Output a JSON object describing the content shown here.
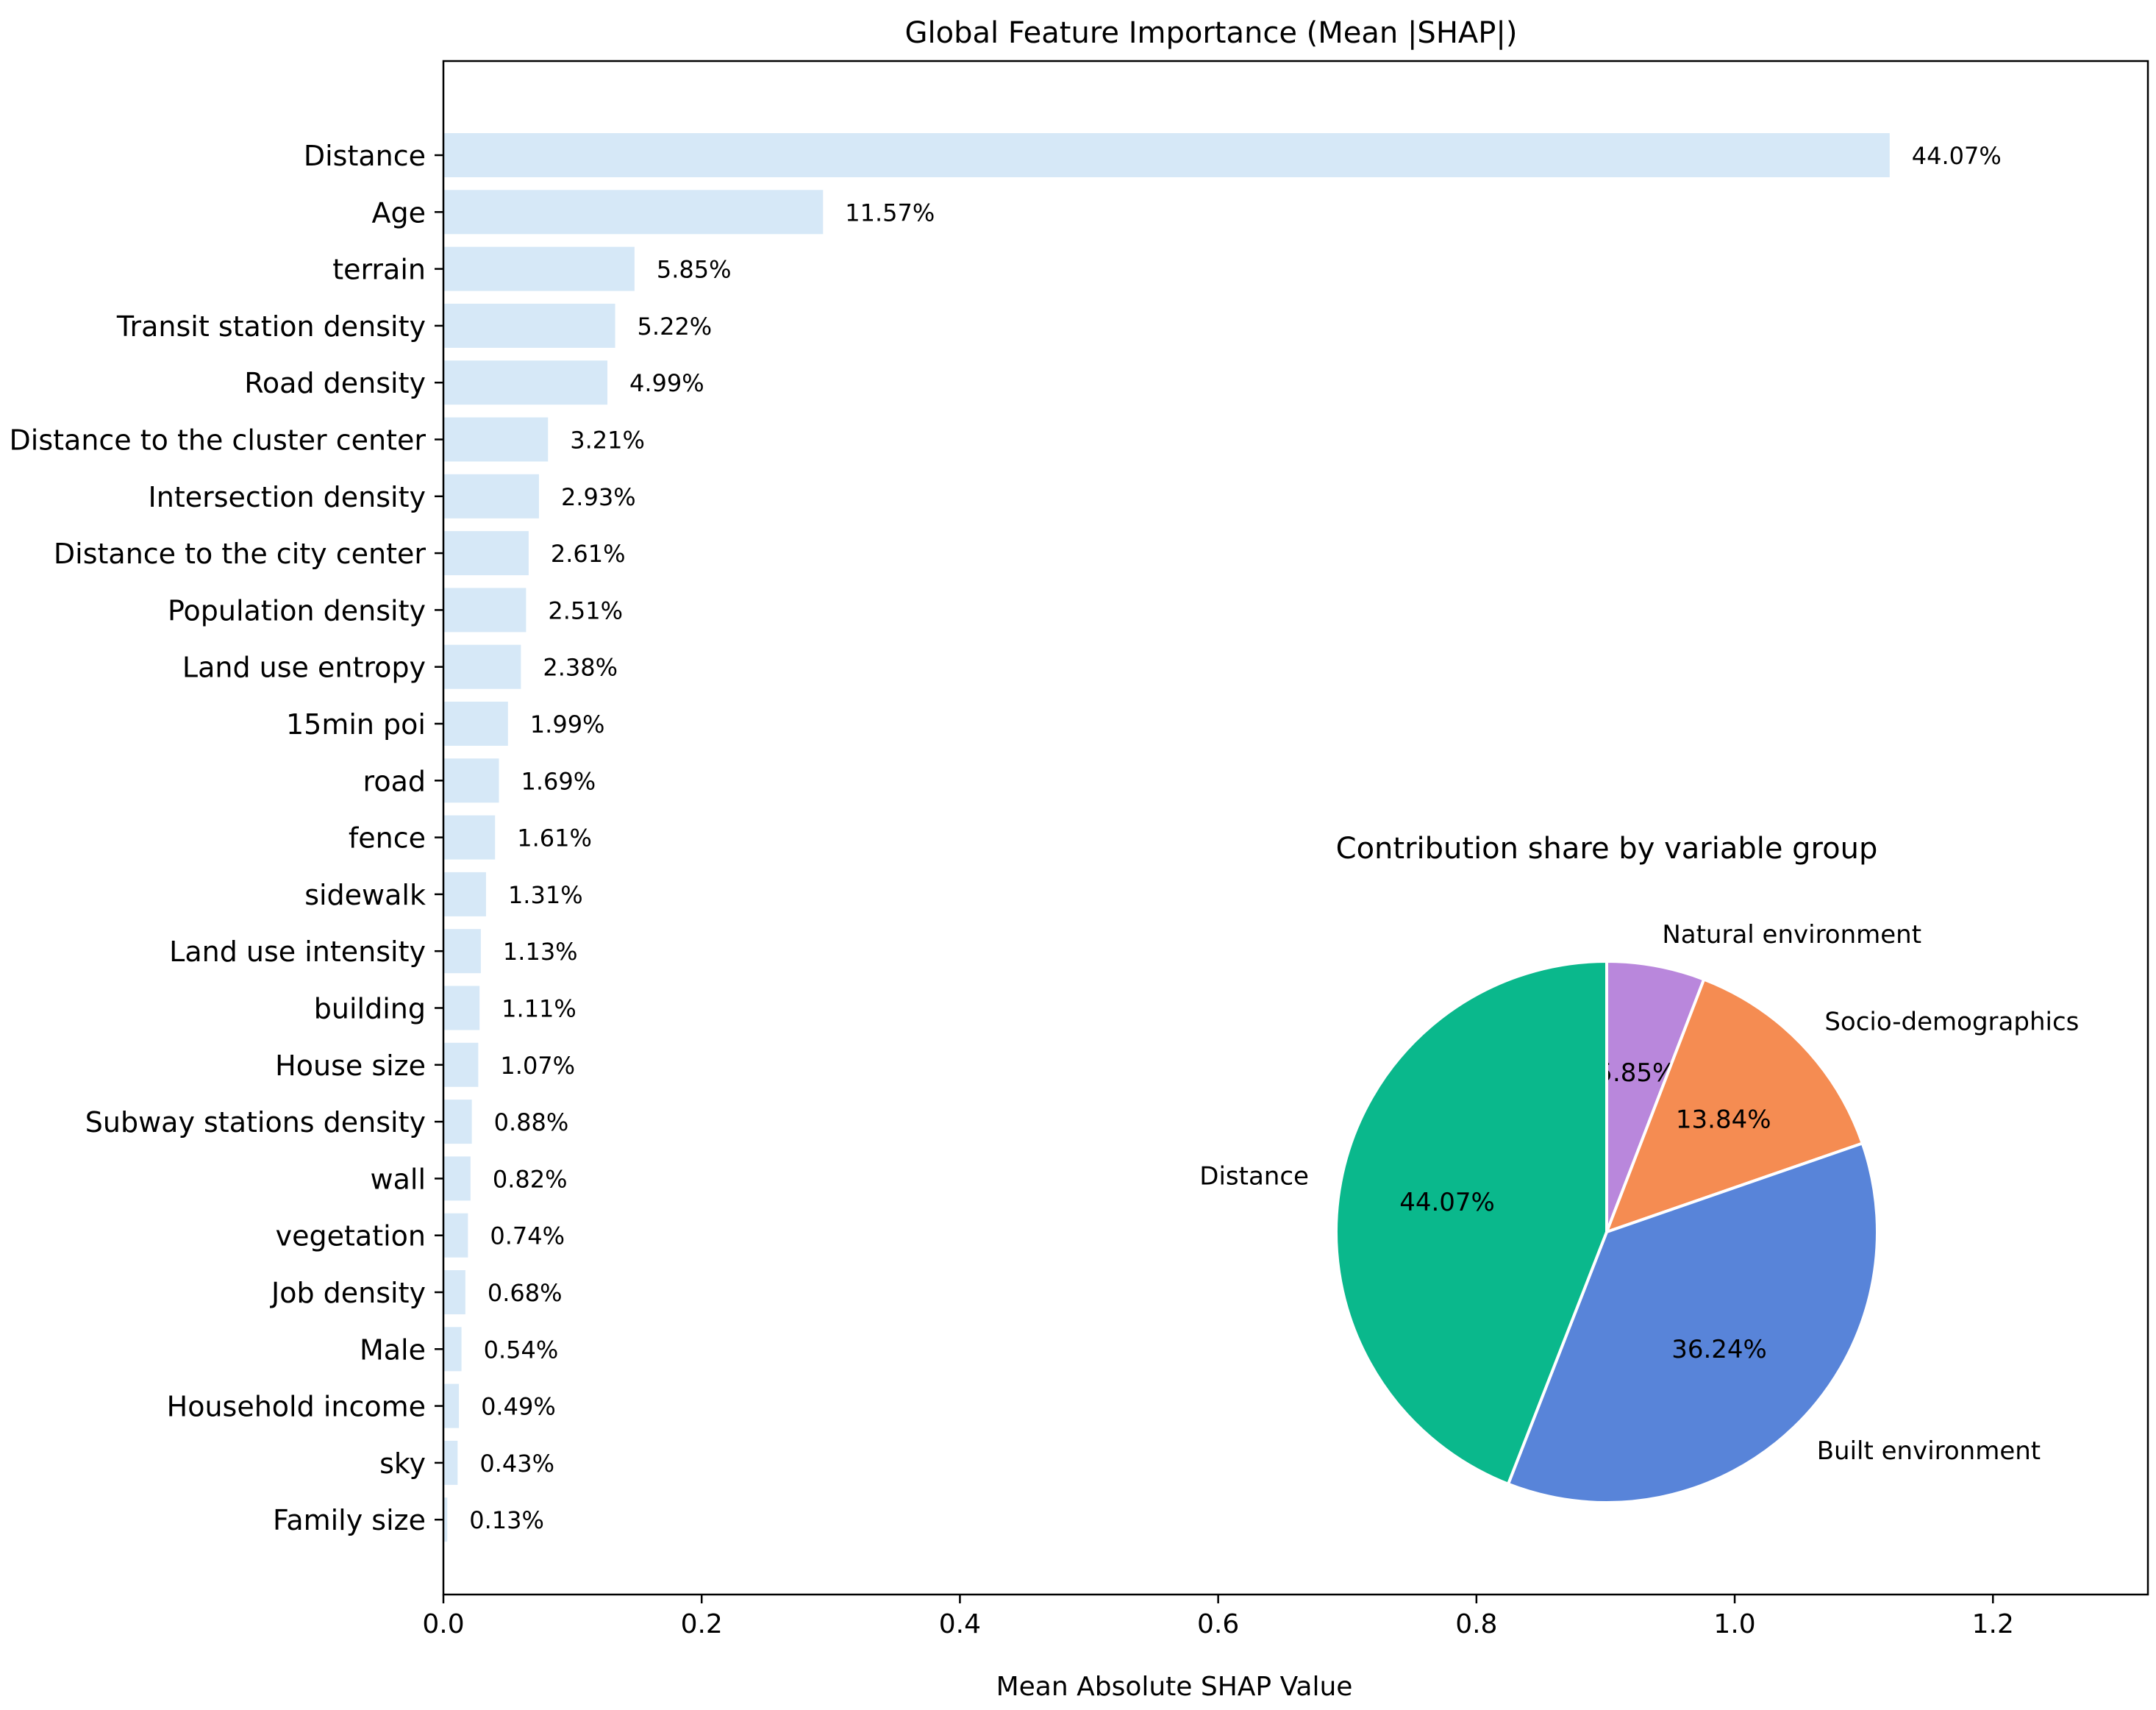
{
  "chart_data": [
    {
      "type": "bar",
      "orientation": "horizontal",
      "title": "Global Feature Importance (Mean |SHAP|)",
      "xlabel": "Mean Absolute SHAP Value",
      "ylabel": "",
      "xlim": [
        0,
        1.32
      ],
      "xticks": [
        "0.0",
        "0.2",
        "0.4",
        "0.6",
        "0.8",
        "1.0",
        "1.2"
      ],
      "xtick_values": [
        0,
        0.2,
        0.4,
        0.6,
        0.8,
        1.0,
        1.2
      ],
      "grid": false,
      "bar_color": "#d6e8f7",
      "categories": [
        "Distance",
        "Age",
        "terrain",
        "Transit station density",
        "Road density",
        "Distance to the cluster center",
        "Intersection density",
        "Distance to the city center",
        "Population density",
        "Land use entropy",
        "15min poi",
        "road",
        "fence",
        "sidewalk",
        "Land use intensity",
        "building",
        "House size",
        "Subway stations density",
        "wall",
        "vegetation",
        "Job density",
        "Male",
        "Household income",
        "sky",
        "Family size"
      ],
      "values": [
        1.12,
        0.294,
        0.148,
        0.133,
        0.127,
        0.081,
        0.074,
        0.066,
        0.064,
        0.06,
        0.05,
        0.043,
        0.04,
        0.033,
        0.029,
        0.028,
        0.027,
        0.022,
        0.021,
        0.019,
        0.017,
        0.014,
        0.012,
        0.011,
        0.003
      ],
      "data_labels": [
        "44.07%",
        "11.57%",
        "5.85%",
        "5.22%",
        "4.99%",
        "3.21%",
        "2.93%",
        "2.61%",
        "2.51%",
        "2.38%",
        "1.99%",
        "1.69%",
        "1.61%",
        "1.31%",
        "1.13%",
        "1.11%",
        "1.07%",
        "0.88%",
        "0.82%",
        "0.74%",
        "0.68%",
        "0.54%",
        "0.49%",
        "0.43%",
        "0.13%"
      ]
    },
    {
      "type": "pie",
      "title": "Contribution share by variable group",
      "start_angle_deg": 90,
      "direction": "clockwise",
      "slices": [
        {
          "label": "Natural environment",
          "value": 5.85,
          "pct_label": "5.85%",
          "color": "#b987dc"
        },
        {
          "label": "Socio-demographics",
          "value": 13.84,
          "pct_label": "13.84%",
          "color": "#f58c52"
        },
        {
          "label": "Built environment",
          "value": 36.24,
          "pct_label": "36.24%",
          "color": "#5884d9"
        },
        {
          "label": "Distance",
          "value": 44.07,
          "pct_label": "44.07%",
          "color": "#0ab88c"
        }
      ]
    }
  ]
}
